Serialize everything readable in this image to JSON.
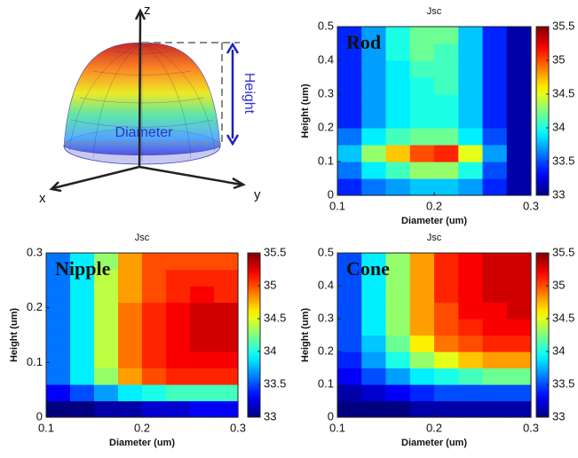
{
  "diagram": {
    "z_axis": "z",
    "x_axis": "x",
    "y_axis": "y",
    "height_label": "Height",
    "diameter_label": "Diameter"
  },
  "chart_data": [
    {
      "type": "heatmap",
      "title": "Jsc",
      "label": "Rod",
      "x_label": "Diameter (um)",
      "y_label": "Height (um)",
      "x": [
        0.1125,
        0.1375,
        0.1625,
        0.1875,
        0.2125,
        0.2375,
        0.2625,
        0.2875
      ],
      "y": [
        0.025,
        0.075,
        0.125,
        0.175,
        0.225,
        0.275,
        0.325,
        0.375,
        0.425,
        0.475
      ],
      "values": [
        [
          33.4,
          33.6,
          33.7,
          33.8,
          33.8,
          33.7,
          33.4,
          33.1
        ],
        [
          33.6,
          33.9,
          34.1,
          34.3,
          34.3,
          34.0,
          33.5,
          33.1
        ],
        [
          33.8,
          34.3,
          34.7,
          35.0,
          35.1,
          34.5,
          33.7,
          33.1
        ],
        [
          33.6,
          33.9,
          34.1,
          34.2,
          34.2,
          33.9,
          33.5,
          33.1
        ],
        [
          33.4,
          33.7,
          33.9,
          34.0,
          34.0,
          33.8,
          33.4,
          33.1
        ],
        [
          33.4,
          33.7,
          33.9,
          34.0,
          34.0,
          33.8,
          33.4,
          33.1
        ],
        [
          33.4,
          33.7,
          33.9,
          34.0,
          34.1,
          33.8,
          33.4,
          33.1
        ],
        [
          33.4,
          33.7,
          33.9,
          34.1,
          34.1,
          33.8,
          33.4,
          33.1
        ],
        [
          33.4,
          33.7,
          34.0,
          34.2,
          34.1,
          33.8,
          33.4,
          33.1
        ],
        [
          33.4,
          33.7,
          34.0,
          34.2,
          34.2,
          33.8,
          33.4,
          33.1
        ]
      ],
      "xlim": [
        0.1,
        0.3
      ],
      "ylim": [
        0,
        0.5
      ],
      "xticks": [
        0.1,
        0.2,
        0.3
      ],
      "yticks": [
        0,
        0.1,
        0.2,
        0.3,
        0.4,
        0.5
      ],
      "colorbar": {
        "lim": [
          33,
          35.5
        ],
        "ticks": [
          33,
          33.5,
          34,
          34.5,
          35,
          35.5
        ]
      }
    },
    {
      "type": "heatmap",
      "title": "Jsc",
      "label": "Nipple",
      "x_label": "Diameter (um)",
      "y_label": "Height (um)",
      "x": [
        0.1125,
        0.1375,
        0.1625,
        0.1875,
        0.2125,
        0.2375,
        0.2625,
        0.2875
      ],
      "y": [
        0.015,
        0.045,
        0.075,
        0.105,
        0.135,
        0.165,
        0.195,
        0.225,
        0.255,
        0.285
      ],
      "values": [
        [
          33.0,
          33.0,
          33.1,
          33.1,
          33.2,
          33.2,
          33.3,
          33.3
        ],
        [
          33.3,
          33.5,
          33.7,
          33.9,
          34.0,
          34.1,
          34.1,
          34.1
        ],
        [
          33.6,
          33.9,
          34.3,
          34.8,
          35.0,
          35.1,
          35.1,
          35.1
        ],
        [
          33.6,
          33.9,
          34.4,
          34.9,
          35.1,
          35.2,
          35.2,
          35.2
        ],
        [
          33.6,
          33.9,
          34.4,
          34.9,
          35.1,
          35.2,
          35.3,
          35.3
        ],
        [
          33.6,
          33.9,
          34.4,
          34.9,
          35.1,
          35.2,
          35.3,
          35.3
        ],
        [
          33.6,
          33.9,
          34.4,
          34.9,
          35.1,
          35.2,
          35.3,
          35.3
        ],
        [
          33.6,
          33.9,
          34.4,
          34.8,
          35.0,
          35.1,
          35.2,
          35.1
        ],
        [
          33.6,
          33.9,
          34.4,
          34.8,
          35.0,
          35.1,
          35.1,
          35.1
        ],
        [
          33.6,
          33.9,
          34.3,
          34.8,
          35.0,
          35.0,
          35.0,
          35.0
        ]
      ],
      "xlim": [
        0.1,
        0.3
      ],
      "ylim": [
        0,
        0.3
      ],
      "xticks": [
        0.1,
        0.2,
        0.3
      ],
      "yticks": [
        0,
        0.1,
        0.2,
        0.3
      ],
      "colorbar": {
        "lim": [
          33,
          35.5
        ],
        "ticks": [
          33,
          33.5,
          34,
          34.5,
          35,
          35.5
        ]
      }
    },
    {
      "type": "heatmap",
      "title": "Jsc",
      "label": "Cone",
      "x_label": "Diameter (um)",
      "y_label": "Height (um)",
      "x": [
        0.1125,
        0.1375,
        0.1625,
        0.1875,
        0.2125,
        0.2375,
        0.2625,
        0.2875
      ],
      "y": [
        0.025,
        0.075,
        0.125,
        0.175,
        0.225,
        0.275,
        0.325,
        0.375,
        0.425,
        0.475
      ],
      "values": [
        [
          33.0,
          33.0,
          33.0,
          33.1,
          33.1,
          33.1,
          33.1,
          33.1
        ],
        [
          33.1,
          33.2,
          33.3,
          33.4,
          33.5,
          33.5,
          33.5,
          33.5
        ],
        [
          33.3,
          33.5,
          33.7,
          33.9,
          34.0,
          34.1,
          34.2,
          34.2
        ],
        [
          33.4,
          33.7,
          34.0,
          34.3,
          34.5,
          34.7,
          34.8,
          34.8
        ],
        [
          33.5,
          33.8,
          34.2,
          34.6,
          34.9,
          35.0,
          35.1,
          35.1
        ],
        [
          33.5,
          33.9,
          34.3,
          34.8,
          35.0,
          35.1,
          35.2,
          35.2
        ],
        [
          33.5,
          33.9,
          34.3,
          34.8,
          35.0,
          35.2,
          35.2,
          35.3
        ],
        [
          33.5,
          33.9,
          34.3,
          34.8,
          35.1,
          35.2,
          35.3,
          35.3
        ],
        [
          33.5,
          33.9,
          34.3,
          34.8,
          35.1,
          35.2,
          35.3,
          35.3
        ],
        [
          33.5,
          33.9,
          34.3,
          34.8,
          35.1,
          35.2,
          35.3,
          35.3
        ]
      ],
      "xlim": [
        0.1,
        0.3
      ],
      "ylim": [
        0,
        0.5
      ],
      "xticks": [
        0.1,
        0.2,
        0.3
      ],
      "yticks": [
        0,
        0.1,
        0.2,
        0.3,
        0.4,
        0.5
      ],
      "colorbar": {
        "lim": [
          33,
          35.5
        ],
        "ticks": [
          33,
          33.5,
          34,
          34.5,
          35,
          35.5
        ]
      }
    }
  ]
}
